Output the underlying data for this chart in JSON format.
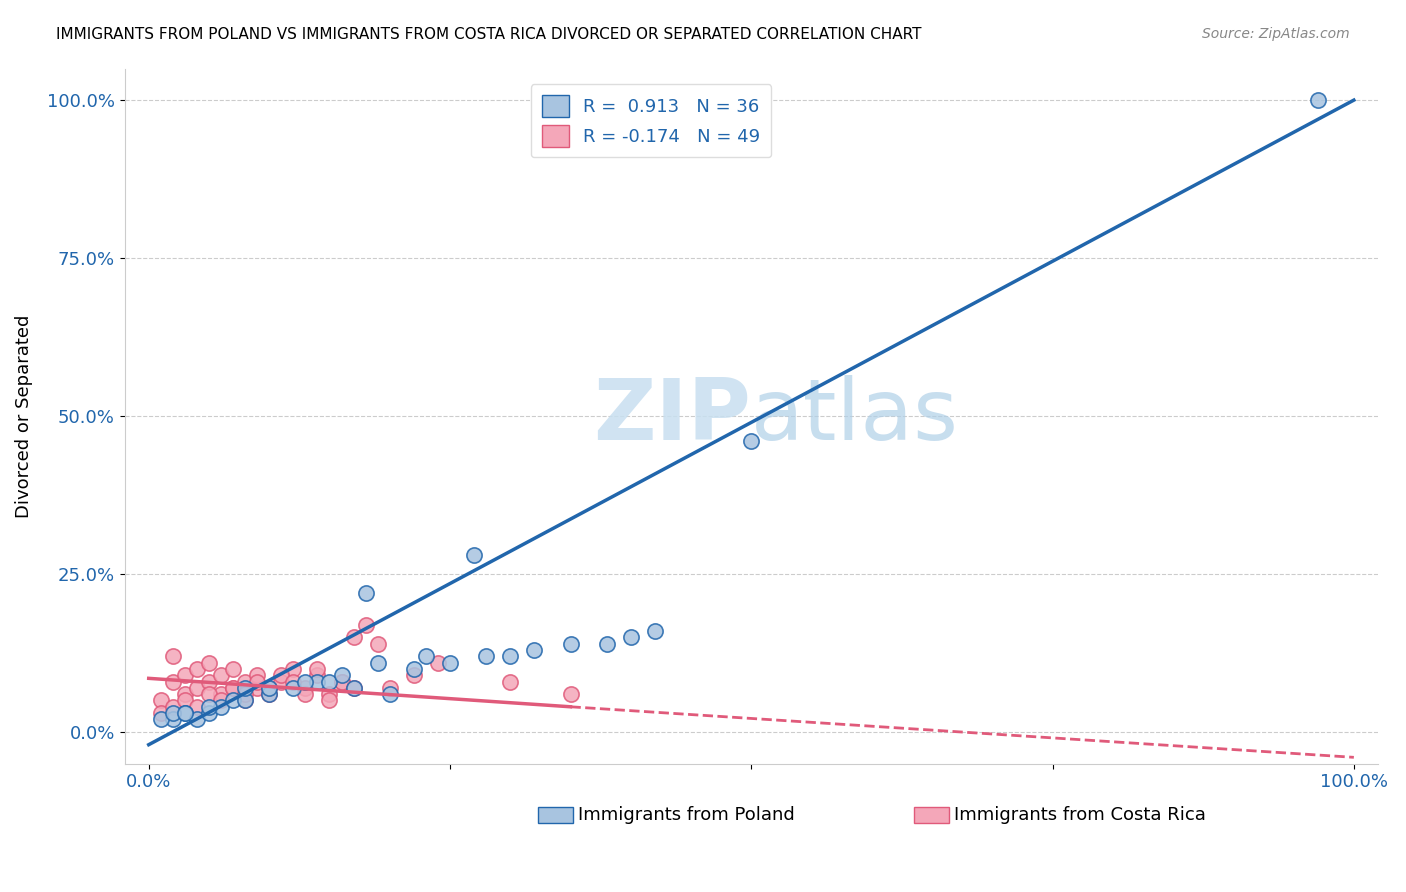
{
  "title": "IMMIGRANTS FROM POLAND VS IMMIGRANTS FROM COSTA RICA DIVORCED OR SEPARATED CORRELATION CHART",
  "source": "Source: ZipAtlas.com",
  "ylabel": "Divorced or Separated",
  "xlabel": "",
  "xlim": [
    0.0,
    1.0
  ],
  "ylim": [
    -0.05,
    1.05
  ],
  "ytick_labels": [
    "0.0%",
    "25.0%",
    "50.0%",
    "75.0%",
    "100.0%"
  ],
  "ytick_vals": [
    0.0,
    0.25,
    0.5,
    0.75,
    1.0
  ],
  "poland_R": 0.913,
  "poland_N": 36,
  "costa_rica_R": -0.174,
  "costa_rica_N": 49,
  "poland_color": "#a8c4e0",
  "costa_rica_color": "#f4a7b9",
  "poland_line_color": "#2166ac",
  "costa_rica_line_color": "#e05a7a",
  "watermark_zip": "ZIP",
  "watermark_atlas": "atlas",
  "background_color": "#ffffff",
  "poland_scatter_x": [
    0.02,
    0.03,
    0.04,
    0.05,
    0.06,
    0.07,
    0.08,
    0.1,
    0.12,
    0.14,
    0.15,
    0.17,
    0.2,
    0.22,
    0.25,
    0.28,
    0.3,
    0.32,
    0.35,
    0.38,
    0.4,
    0.42,
    0.01,
    0.02,
    0.03,
    0.05,
    0.08,
    0.1,
    0.13,
    0.16,
    0.19,
    0.23,
    0.27,
    0.5,
    0.97,
    0.18
  ],
  "poland_scatter_y": [
    0.02,
    0.03,
    0.02,
    0.03,
    0.04,
    0.05,
    0.05,
    0.06,
    0.07,
    0.08,
    0.08,
    0.07,
    0.06,
    0.1,
    0.11,
    0.12,
    0.12,
    0.13,
    0.14,
    0.14,
    0.15,
    0.16,
    0.02,
    0.03,
    0.03,
    0.04,
    0.07,
    0.07,
    0.08,
    0.09,
    0.11,
    0.12,
    0.28,
    0.46,
    1.0,
    0.22
  ],
  "costa_rica_scatter_x": [
    0.01,
    0.02,
    0.02,
    0.03,
    0.03,
    0.04,
    0.04,
    0.05,
    0.05,
    0.06,
    0.06,
    0.07,
    0.07,
    0.08,
    0.08,
    0.09,
    0.09,
    0.1,
    0.11,
    0.12,
    0.13,
    0.14,
    0.15,
    0.16,
    0.17,
    0.18,
    0.19,
    0.2,
    0.22,
    0.24,
    0.01,
    0.02,
    0.03,
    0.04,
    0.05,
    0.06,
    0.07,
    0.08,
    0.09,
    0.1,
    0.11,
    0.12,
    0.13,
    0.14,
    0.15,
    0.16,
    0.17,
    0.3,
    0.35
  ],
  "costa_rica_scatter_y": [
    0.05,
    0.08,
    0.12,
    0.06,
    0.09,
    0.07,
    0.1,
    0.08,
    0.11,
    0.06,
    0.09,
    0.07,
    0.1,
    0.08,
    0.05,
    0.07,
    0.09,
    0.06,
    0.08,
    0.1,
    0.07,
    0.09,
    0.06,
    0.08,
    0.15,
    0.17,
    0.14,
    0.07,
    0.09,
    0.11,
    0.03,
    0.04,
    0.05,
    0.04,
    0.06,
    0.05,
    0.07,
    0.06,
    0.08,
    0.07,
    0.09,
    0.08,
    0.06,
    0.1,
    0.05,
    0.08,
    0.07,
    0.08,
    0.06
  ]
}
